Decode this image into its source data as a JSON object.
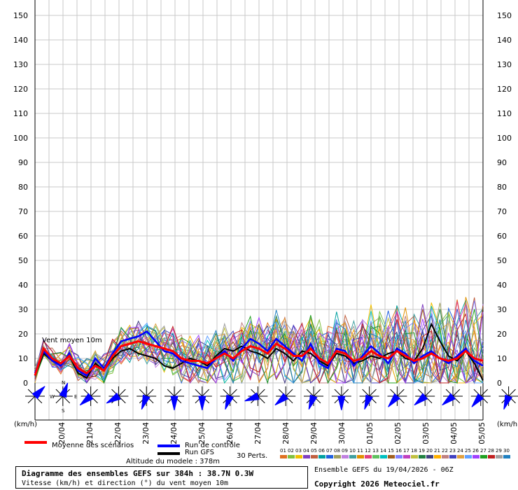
{
  "chart_data": {
    "type": "line",
    "y_ticks": [
      0,
      10,
      20,
      30,
      40,
      50,
      60,
      70,
      80,
      90,
      100,
      110,
      120,
      130,
      140,
      150
    ],
    "ylim": [
      0,
      150
    ],
    "y_unit_left": "(km/h)",
    "y_unit_right": "(km/h)",
    "date_labels": [
      "20/04",
      "21/04",
      "22/04",
      "23/04",
      "24/04",
      "25/04",
      "26/04",
      "27/04",
      "28/04",
      "29/04",
      "30/04",
      "01/05",
      "02/05",
      "03/05",
      "04/05",
      "05/05"
    ],
    "x_step_hours": 6,
    "annotation": "Vent moyen 10m",
    "series": [
      {
        "name": "Moyenne des scénarios",
        "color": "#ff0000",
        "values": [
          3,
          14,
          10,
          8,
          11,
          6,
          4,
          7,
          5,
          11,
          15,
          16,
          17,
          16,
          15,
          14,
          13,
          10,
          9,
          9,
          8,
          10,
          12,
          10,
          13,
          15,
          14,
          12,
          16,
          14,
          11,
          11,
          14,
          10,
          8,
          13,
          12,
          9,
          10,
          13,
          11,
          10,
          13,
          11,
          9,
          10,
          12,
          10,
          9,
          10,
          13,
          10,
          9
        ]
      },
      {
        "name": "Run de contrôle",
        "color": "#0000ff",
        "values": [
          4,
          13,
          9,
          7,
          12,
          5,
          3,
          10,
          6,
          12,
          17,
          18,
          19,
          21,
          17,
          13,
          12,
          9,
          8,
          7,
          6,
          10,
          13,
          9,
          14,
          18,
          16,
          13,
          18,
          15,
          12,
          9,
          16,
          8,
          6,
          14,
          13,
          7,
          11,
          15,
          12,
          8,
          14,
          12,
          8,
          11,
          13,
          10,
          8,
          11,
          14,
          9,
          7
        ]
      },
      {
        "name": "Run GFS",
        "color": "#000000",
        "values": [
          3,
          12,
          9,
          8,
          11,
          4,
          2,
          8,
          5,
          10,
          13,
          14,
          12,
          11,
          10,
          7,
          6,
          8,
          10,
          9,
          7,
          11,
          14,
          13,
          15,
          13,
          12,
          10,
          14,
          12,
          9,
          13,
          12,
          9,
          7,
          12,
          11,
          8,
          9,
          11,
          10,
          12,
          13,
          10,
          9,
          14,
          24,
          17,
          11,
          9,
          13,
          8,
          1
        ]
      }
    ],
    "wind_directions_deg": [
      45,
      20,
      230,
      240,
      200,
      180,
      180,
      200,
      250,
      230,
      200,
      180,
      200,
      220,
      230,
      230,
      220,
      200,
      240
    ]
  },
  "legend": {
    "mean_label": "Moyenne des scénarios",
    "control_label": "Run de contrôle",
    "gfs_label": "Run GFS",
    "perts_label": "30 Perts.",
    "pert_numbers": [
      "01",
      "02",
      "03",
      "04",
      "05",
      "06",
      "07",
      "08",
      "09",
      "10",
      "11",
      "12",
      "13",
      "14",
      "15",
      "16",
      "17",
      "18",
      "19",
      "20",
      "21",
      "22",
      "23",
      "24",
      "25",
      "26",
      "27",
      "28",
      "29",
      "30"
    ],
    "pert_colors": [
      "#e07020",
      "#80c040",
      "#f0c000",
      "#8040c0",
      "#c06040",
      "#00a0a0",
      "#2060e0",
      "#a0a060",
      "#c080e0",
      "#40a0a0",
      "#e09000",
      "#e04080",
      "#60c060",
      "#00c0c0",
      "#a06020",
      "#8080ff",
      "#c040c0",
      "#c0c040",
      "#208040",
      "#404080",
      "#ffb000",
      "#c08080",
      "#4040c0",
      "#e0a040",
      "#60a0ff",
      "#a040ff",
      "#20a020",
      "#c02020",
      "#a0a0a0",
      "#2080c0"
    ],
    "altitude": "Altitude du modele : 378m"
  },
  "compass": {
    "n": "N",
    "s": "S",
    "e": "E",
    "w": "W"
  },
  "footer": {
    "title": "Diagramme des ensembles GEFS sur 384h : 38.7N 0.3W",
    "subtitle": "Vitesse (km/h) et direction (°) du vent moyen 10m",
    "run_info": "Ensemble GEFS du 19/04/2026 - 06Z",
    "copyright": "Copyright 2026 Meteociel.fr"
  }
}
